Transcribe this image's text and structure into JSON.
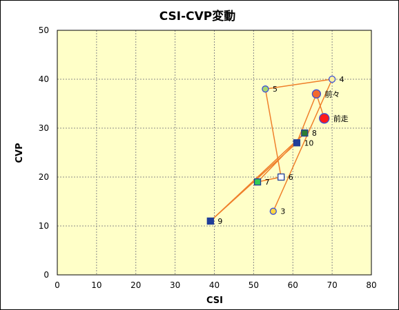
{
  "chart_data": {
    "type": "scatter",
    "title": "CSI-CVP変動",
    "xlabel": "CSI",
    "ylabel": "CVP",
    "xlim": [
      0,
      80
    ],
    "ylim": [
      0,
      50
    ],
    "x_ticks": [
      "0",
      "10",
      "20",
      "30",
      "40",
      "50",
      "60",
      "70",
      "80"
    ],
    "y_ticks": [
      "0",
      "10",
      "20",
      "30",
      "40",
      "50"
    ],
    "grid": true,
    "plot_background": "#ffffc8",
    "line_color": "#ef7f2a",
    "grid_color": "#888888",
    "legend": "none",
    "path_order": [
      "3",
      "4",
      "5",
      "6",
      "7",
      "8",
      "9",
      "10",
      "前々",
      "前走"
    ],
    "points": [
      {
        "label": "3",
        "x": 55,
        "y": 13,
        "marker": "circle",
        "fill": "#ffd640",
        "stroke": "#3a4fd8",
        "size": "small"
      },
      {
        "label": "4",
        "x": 70,
        "y": 40,
        "marker": "circle",
        "fill": "#fff2a0",
        "stroke": "#3a4fd8",
        "size": "small"
      },
      {
        "label": "5",
        "x": 53,
        "y": 38,
        "marker": "circle",
        "fill": "#a9d86e",
        "stroke": "#3a4fd8",
        "size": "small"
      },
      {
        "label": "6",
        "x": 57,
        "y": 20,
        "marker": "square",
        "fill": "#ffffff",
        "stroke": "#1f3d99",
        "size": "small"
      },
      {
        "label": "7",
        "x": 51,
        "y": 19,
        "marker": "square",
        "fill": "#33cc55",
        "stroke": "#1f3d99",
        "size": "small"
      },
      {
        "label": "8",
        "x": 63,
        "y": 29,
        "marker": "square",
        "fill": "#2e7d32",
        "stroke": "#1f3d99",
        "size": "small"
      },
      {
        "label": "9",
        "x": 39,
        "y": 11,
        "marker": "square",
        "fill": "#1f3d99",
        "stroke": "#1f3d99",
        "size": "small"
      },
      {
        "label": "10",
        "x": 61,
        "y": 27,
        "marker": "square",
        "fill": "#1f3d99",
        "stroke": "#1f3d99",
        "size": "small"
      },
      {
        "label": "前々",
        "x": 66,
        "y": 37,
        "marker": "circle",
        "fill": "#f26a2e",
        "stroke": "#3a4fd8",
        "size": "medium"
      },
      {
        "label": "前走",
        "x": 68,
        "y": 32,
        "marker": "circle",
        "fill": "#ff1a1a",
        "stroke": "#3a4fd8",
        "size": "large"
      }
    ]
  }
}
